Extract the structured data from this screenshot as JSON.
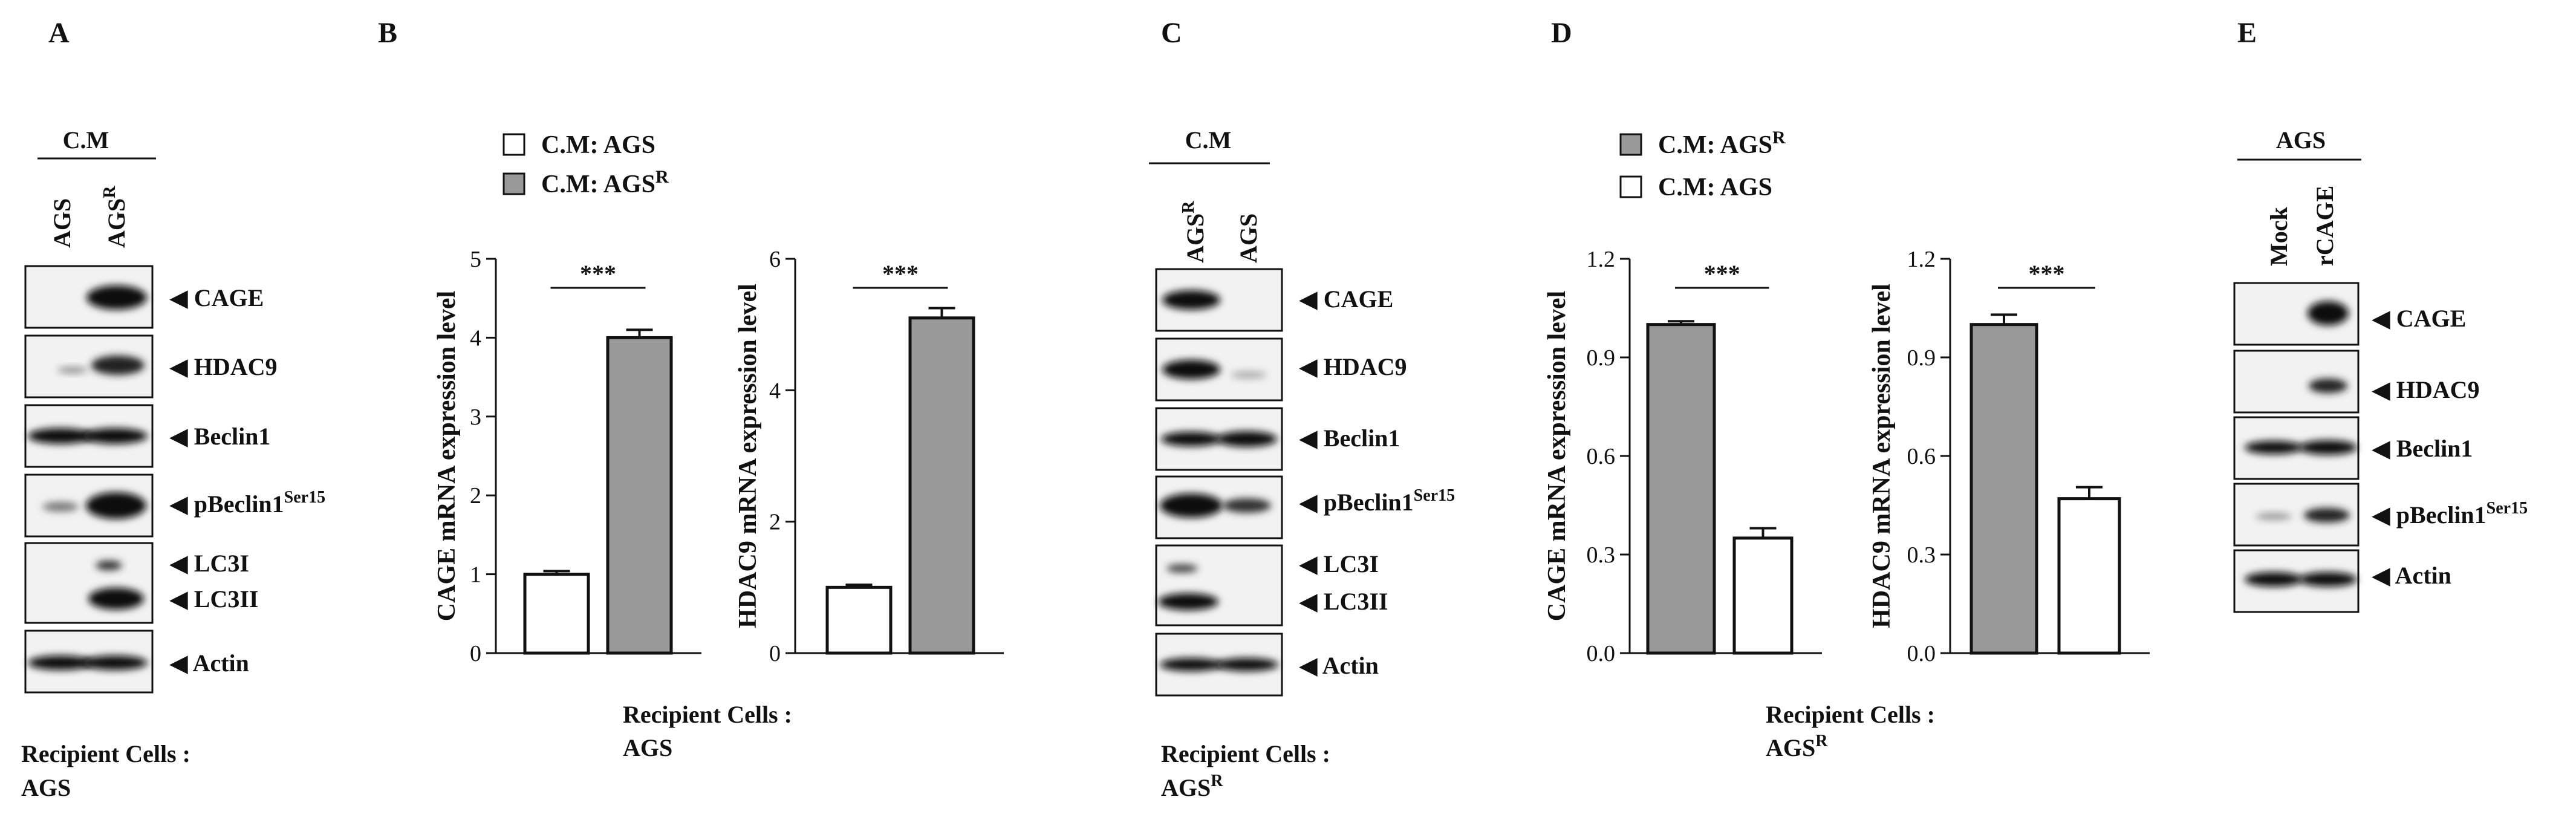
{
  "panels": {
    "A": {
      "letter": "A",
      "header": "C.M",
      "lanes": [
        {
          "text": "AGS",
          "sup": ""
        },
        {
          "text": "AGS",
          "sup": "R"
        }
      ],
      "bands": [
        {
          "text": "CAGE",
          "sup": ""
        },
        {
          "text": "HDAC9",
          "sup": ""
        },
        {
          "text": "Beclin1",
          "sup": ""
        },
        {
          "text": "pBeclin1",
          "sup": "Ser15"
        },
        {
          "text": "LC3I",
          "sup": ""
        },
        {
          "text": "LC3II",
          "sup": ""
        },
        {
          "text": "Actin",
          "sup": ""
        }
      ],
      "recipient_label": "Recipient Cells :",
      "recipient_cells": {
        "text": "AGS",
        "sup": ""
      }
    },
    "B": {
      "letter": "B",
      "legend": [
        {
          "text": "C.M: AGS",
          "sup": "",
          "color": "#ffffff"
        },
        {
          "text": "C.M: AGS",
          "sup": "R",
          "color": "#999999"
        }
      ],
      "recipient_label": "Recipient Cells :",
      "recipient_cells": {
        "text": "AGS",
        "sup": ""
      }
    },
    "C": {
      "letter": "C",
      "header": "C.M",
      "lanes": [
        {
          "text": "AGS",
          "sup": "R"
        },
        {
          "text": "AGS",
          "sup": ""
        }
      ],
      "bands": [
        {
          "text": "CAGE",
          "sup": ""
        },
        {
          "text": "HDAC9",
          "sup": ""
        },
        {
          "text": "Beclin1",
          "sup": ""
        },
        {
          "text": "pBeclin1",
          "sup": "Ser15"
        },
        {
          "text": "LC3I",
          "sup": ""
        },
        {
          "text": "LC3II",
          "sup": ""
        },
        {
          "text": "Actin",
          "sup": ""
        }
      ],
      "recipient_label": "Recipient Cells :",
      "recipient_cells": {
        "text": "AGS",
        "sup": "R"
      }
    },
    "D": {
      "letter": "D",
      "legend": [
        {
          "text": "C.M: AGS",
          "sup": "R",
          "color": "#999999"
        },
        {
          "text": "C.M: AGS",
          "sup": "",
          "color": "#ffffff"
        }
      ],
      "recipient_label": "Recipient Cells :",
      "recipient_cells": {
        "text": "AGS",
        "sup": "R"
      }
    },
    "E": {
      "letter": "E",
      "header": "AGS",
      "lanes": [
        {
          "text": "Mock",
          "sup": ""
        },
        {
          "text": "rCAGE",
          "sup": ""
        }
      ],
      "bands": [
        {
          "text": "CAGE",
          "sup": ""
        },
        {
          "text": "HDAC9",
          "sup": ""
        },
        {
          "text": "Beclin1",
          "sup": ""
        },
        {
          "text": "pBeclin1",
          "sup": "Ser15"
        },
        {
          "text": "Actin",
          "sup": ""
        }
      ]
    }
  },
  "colors": {
    "grey_bar": "#999999",
    "white_bar": "#ffffff",
    "axis": "#111111"
  },
  "chart_data": [
    {
      "panel": "B",
      "type": "bar",
      "ylabel": "CAGE mRNA expression level",
      "ylim": [
        0,
        5
      ],
      "yticks": [
        0,
        1,
        2,
        3,
        4,
        5
      ],
      "tick_decimals": 0,
      "series": [
        {
          "value": 1.0,
          "error": 0.04,
          "color": "#ffffff"
        },
        {
          "value": 4.0,
          "error": 0.1,
          "color": "#999999"
        }
      ],
      "significance": "***"
    },
    {
      "panel": "B",
      "type": "bar",
      "ylabel": "HDAC9 mRNA expression level",
      "ylim": [
        0,
        6
      ],
      "yticks": [
        0,
        2,
        4,
        6
      ],
      "tick_decimals": 0,
      "series": [
        {
          "value": 1.0,
          "error": 0.04,
          "color": "#ffffff"
        },
        {
          "value": 5.1,
          "error": 0.15,
          "color": "#999999"
        }
      ],
      "significance": "***"
    },
    {
      "panel": "D",
      "type": "bar",
      "ylabel": "CAGE mRNA expression level",
      "ylim": [
        0,
        1.2
      ],
      "yticks": [
        0.0,
        0.3,
        0.6,
        0.9,
        1.2
      ],
      "tick_decimals": 1,
      "series": [
        {
          "value": 1.0,
          "error": 0.01,
          "color": "#999999"
        },
        {
          "value": 0.35,
          "error": 0.03,
          "color": "#ffffff"
        }
      ],
      "significance": "***"
    },
    {
      "panel": "D",
      "type": "bar",
      "ylabel": "HDAC9 mRNA expression level",
      "ylim": [
        0,
        1.2
      ],
      "yticks": [
        0.0,
        0.3,
        0.6,
        0.9,
        1.2
      ],
      "tick_decimals": 1,
      "series": [
        {
          "value": 1.0,
          "error": 0.03,
          "color": "#999999"
        },
        {
          "value": 0.47,
          "error": 0.035,
          "color": "#ffffff"
        }
      ],
      "significance": "***"
    }
  ]
}
